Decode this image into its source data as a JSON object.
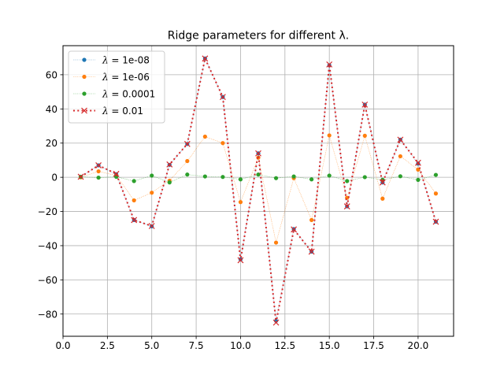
{
  "chart_data": {
    "type": "line",
    "title": "Ridge parameters for different λ.",
    "xlabel": "",
    "ylabel": "",
    "xlim": [
      0.0,
      22.0
    ],
    "ylim": [
      -93,
      77
    ],
    "xticks": [
      0.0,
      2.5,
      5.0,
      7.5,
      10.0,
      12.5,
      15.0,
      17.5,
      20.0
    ],
    "xtick_labels": [
      "0.0",
      "2.5",
      "5.0",
      "7.5",
      "10.0",
      "12.5",
      "15.0",
      "17.5",
      "20.0"
    ],
    "yticks": [
      -80,
      -60,
      -40,
      -20,
      0,
      20,
      40,
      60
    ],
    "ytick_labels": [
      "−80",
      "−60",
      "−40",
      "−20",
      "0",
      "20",
      "40",
      "60"
    ],
    "grid": true,
    "legend_position": "top-left",
    "x": [
      1,
      2,
      3,
      4,
      5,
      6,
      7,
      8,
      9,
      10,
      11,
      12,
      13,
      14,
      15,
      16,
      17,
      18,
      19,
      20,
      21
    ],
    "series": [
      {
        "name": "λ = 1e-08",
        "lambda_prefix": "λ = ",
        "lambda_value": "1e-08",
        "color": "#1f77b4",
        "linestyle": "dotted-thin",
        "marker": "dot",
        "values": [
          0.3,
          7.0,
          1.8,
          -25.0,
          -28.7,
          7.3,
          19.5,
          69.5,
          47.0,
          -48.0,
          14.0,
          -84.0,
          -30.3,
          -43.5,
          65.5,
          -17.0,
          42.5,
          -3.0,
          22.0,
          8.0,
          -26.0
        ]
      },
      {
        "name": "λ = 1e-06",
        "lambda_prefix": "λ = ",
        "lambda_value": "1e-06",
        "color": "#ff7f0e",
        "linestyle": "dotted-thin",
        "marker": "dot",
        "values": [
          0.0,
          3.5,
          1.0,
          -13.5,
          -9.0,
          -2.0,
          9.5,
          23.8,
          20.0,
          -14.5,
          11.5,
          -38.2,
          -0.5,
          -25.0,
          24.5,
          -12.0,
          24.3,
          -12.5,
          12.3,
          4.5,
          -9.5
        ]
      },
      {
        "name": "λ = 0.0001",
        "lambda_prefix": "λ = ",
        "lambda_value": "0.0001",
        "color": "#2ca02c",
        "linestyle": "dotted-thin",
        "marker": "dot",
        "values": [
          0.3,
          -0.2,
          0.3,
          -2.2,
          1.0,
          -3.0,
          1.6,
          0.5,
          0.2,
          -1.2,
          1.6,
          -0.5,
          0.5,
          -1.2,
          1.0,
          -2.2,
          0.1,
          -1.5,
          0.6,
          -1.5,
          1.4
        ]
      },
      {
        "name": "λ = 0.01",
        "lambda_prefix": "λ = ",
        "lambda_value": "0.01",
        "color": "#d62728",
        "linestyle": "dotted-thick",
        "marker": "x",
        "values": [
          0.3,
          7.0,
          2.0,
          -25.0,
          -28.5,
          7.5,
          19.5,
          69.5,
          47.0,
          -48.5,
          14.0,
          -85.0,
          -30.5,
          -43.5,
          66.0,
          -17.0,
          42.5,
          -3.0,
          22.0,
          8.5,
          -26.0
        ]
      }
    ]
  }
}
